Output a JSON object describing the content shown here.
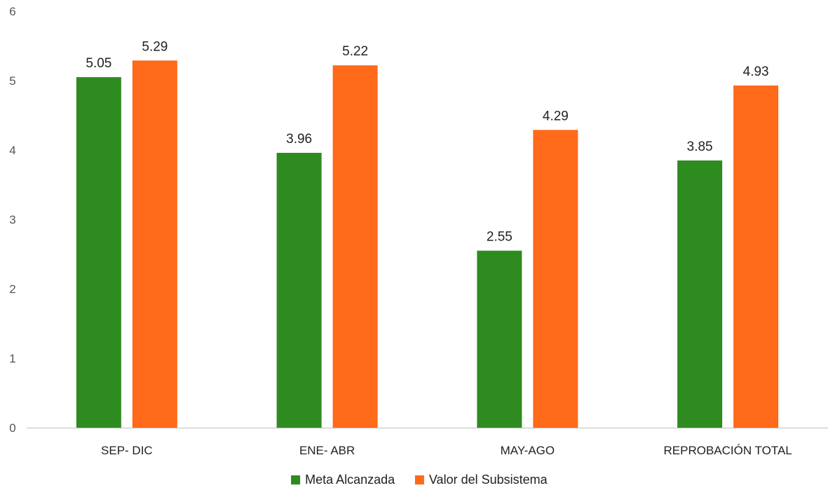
{
  "chart_data": {
    "type": "bar",
    "title": "",
    "xlabel": "",
    "ylabel": "",
    "categories": [
      "SEP- DIC",
      "ENE- ABR",
      "MAY-AGO",
      "REPROBACIÓN TOTAL"
    ],
    "series": [
      {
        "name": "Meta Alcanzada",
        "color": "#2e8b1f",
        "values": [
          5.05,
          3.96,
          2.55,
          3.85
        ],
        "labels": [
          "5.05",
          "3.96",
          "2.55",
          "3.85"
        ]
      },
      {
        "name": "Valor del Subsistema",
        "color": "#ff6a1a",
        "values": [
          5.29,
          5.22,
          4.29,
          4.93
        ],
        "labels": [
          "5.29",
          "5.22",
          "4.29",
          "4.93"
        ]
      }
    ],
    "ylim": [
      0,
      6
    ],
    "yticks": [
      "0",
      "1",
      "2",
      "3",
      "4",
      "5",
      "6"
    ],
    "grid": false,
    "legend": "bottom-center"
  }
}
